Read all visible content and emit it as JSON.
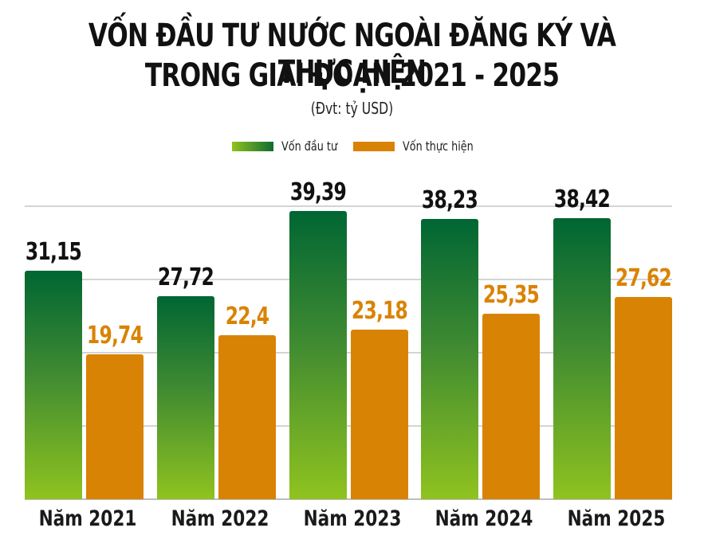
{
  "title_line1": "VỐN ĐẦU TƯ NƯỚC NGOÀI ĐĂNG KÝ VÀ THỰC HIỆN",
  "title_line2": "TRONG GIAI ĐOẠN 2021 - 2025",
  "unit": "(Đvt: tỷ USD)",
  "legend": [
    {
      "label": "Vốn đầu tư",
      "color": "#0f6b2f"
    },
    {
      "label": "Vốn thực hiện",
      "color": "#d98304"
    }
  ],
  "labels": {
    "g0": "31,15",
    "o0": "19,74",
    "g1": "27,72",
    "o1": "22,4",
    "g2": "39,39",
    "o2": "23,18",
    "g3": "38,23",
    "o3": "25,35",
    "g4": "38,42",
    "o4": "27,62"
  },
  "categories_display": [
    "Năm 2021",
    "Năm 2022",
    "Năm 2023",
    "Năm 2024",
    "Năm 2025"
  ],
  "chart_data": {
    "type": "bar",
    "title": "VỐN ĐẦU TƯ NƯỚC NGOÀI ĐĂNG KÝ VÀ THỰC HIỆN TRONG GIAI ĐOẠN 2021 - 2025",
    "subtitle": "(Đvt: tỷ USD)",
    "categories": [
      "Năm 2021",
      "Năm 2022",
      "Năm 2023",
      "Năm 2024",
      "Năm 2025"
    ],
    "series": [
      {
        "name": "Vốn đầu tư",
        "values": [
          31.15,
          27.72,
          39.39,
          38.23,
          38.42
        ],
        "color": "#0f6b2f"
      },
      {
        "name": "Vốn thực hiện",
        "values": [
          19.74,
          22.4,
          23.18,
          25.35,
          27.62
        ],
        "color": "#d98304"
      }
    ],
    "xlabel": "",
    "ylabel": "",
    "ylim": [
      0,
      40
    ],
    "grid": true,
    "gridlines": [
      0,
      10,
      20,
      30,
      40
    ],
    "legend_position": "top",
    "data_labels": true
  }
}
